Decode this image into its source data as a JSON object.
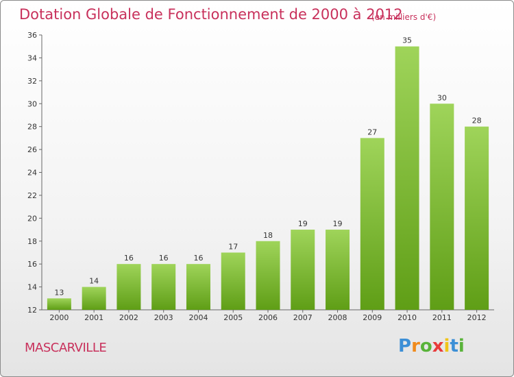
{
  "chart_data": {
    "type": "bar",
    "title": "Dotation Globale de Fonctionnement de 2000 à 2012",
    "subtitle": "(en milliers d'€)",
    "categories": [
      "2000",
      "2001",
      "2002",
      "2003",
      "2004",
      "2005",
      "2006",
      "2007",
      "2008",
      "2009",
      "2010",
      "2011",
      "2012"
    ],
    "values": [
      13,
      14,
      16,
      16,
      16,
      17,
      18,
      19,
      19,
      27,
      35,
      30,
      28
    ],
    "ylim": [
      12,
      36
    ],
    "yticks": [
      12,
      14,
      16,
      18,
      20,
      22,
      24,
      26,
      28,
      30,
      32,
      34,
      36
    ],
    "xlabel": "",
    "ylabel": "",
    "grid": false,
    "colors": {
      "bar_top": "#9fd45a",
      "bar_bottom": "#5f9e16",
      "title": "#c8305b"
    }
  },
  "footer": {
    "city": "MASCARVILLE",
    "logo": {
      "letters": [
        "P",
        "r",
        "o",
        "x",
        "i",
        "t",
        "i"
      ],
      "colors": [
        "#3c8fd6",
        "#f08a1c",
        "#59b33a",
        "#e83b3b",
        "#f0c419",
        "#3c8fd6",
        "#59b33a"
      ]
    }
  }
}
